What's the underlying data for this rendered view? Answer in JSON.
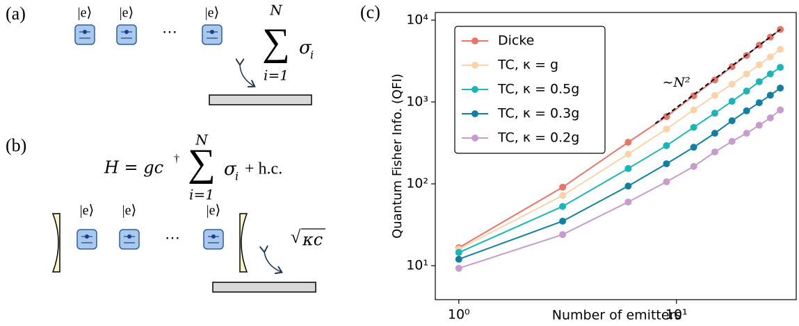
{
  "panel_a": {
    "label": "(a)",
    "kets": [
      "|e⟩",
      "|e⟩",
      "|e⟩"
    ],
    "ellipsis": "⋯",
    "sum_upper": "N",
    "sum_symbol": "∑",
    "operator": "σ",
    "operator_index": "i",
    "sum_lower": "i=1"
  },
  "panel_b": {
    "label": "(b)",
    "hamiltonian_lhs": "H = gc",
    "dagger": "†",
    "sum_upper": "N",
    "sum_symbol": "∑",
    "operator": "σ",
    "operator_index": "i",
    "hamiltonian_rest": "+ h.c.",
    "sum_lower": "i=1",
    "kets": [
      "|e⟩",
      "|e⟩",
      "|e⟩"
    ],
    "ellipsis": "⋯",
    "decay_root": "√",
    "decay_rate": "κc"
  },
  "chart_data": {
    "type": "line",
    "panel_label": "(c)",
    "xlabel": "Number of emitters",
    "ylabel": "Quantum Fisher Info. (QFI)",
    "x": [
      1,
      3,
      6,
      9,
      12,
      15,
      18,
      21,
      24,
      27,
      30
    ],
    "series": [
      {
        "name": "Dicke",
        "color": "#e8756a",
        "values": [
          16.6,
          91,
          322,
          664,
          1190,
          1860,
          2700,
          3700,
          4950,
          6200,
          7700
        ]
      },
      {
        "name": "TC, κ = g",
        "color": "#fbd3ab",
        "values": [
          16,
          72,
          231,
          467,
          800,
          1200,
          1650,
          2200,
          2850,
          3550,
          4400
        ]
      },
      {
        "name": "TC, κ = 0.5g",
        "color": "#1ab5b8",
        "values": [
          14.5,
          53,
          154,
          293,
          490,
          730,
          1020,
          1360,
          1770,
          2200,
          2650
        ]
      },
      {
        "name": "TC, κ = 0.3g",
        "color": "#11809f",
        "values": [
          12,
          35,
          94,
          176,
          280,
          415,
          590,
          780,
          980,
          1210,
          1480
        ]
      },
      {
        "name": "TC, κ = 0.2g",
        "color": "#c79ccc",
        "values": [
          9.3,
          24,
          60,
          106,
          163,
          245,
          330,
          415,
          520,
          640,
          800
        ]
      }
    ],
    "guide": {
      "label": "∼N²",
      "x": [
        8,
        30
      ],
      "values": [
        546,
        7700
      ],
      "color": "#000000"
    },
    "xlim": [
      0.78,
      35.5
    ],
    "ylim": [
      3.85,
      12400
    ],
    "log_x": true,
    "log_y": true,
    "xticks": [
      {
        "value": 1,
        "label": "10⁰"
      },
      {
        "value": 10,
        "label": "10¹"
      }
    ],
    "yticks": [
      {
        "value": 10,
        "label": "10¹"
      },
      {
        "value": 100,
        "label": "10²"
      },
      {
        "value": 1000,
        "label": "10³"
      },
      {
        "value": 10000,
        "label": "10⁴"
      }
    ],
    "legend": "upper left"
  }
}
